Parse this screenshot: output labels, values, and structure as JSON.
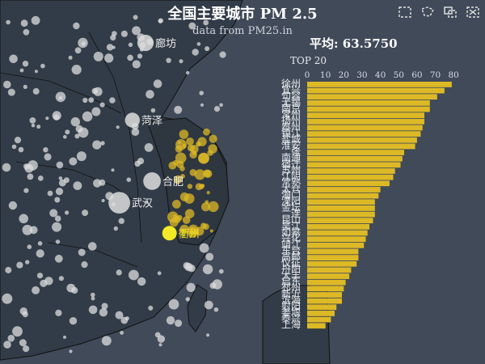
{
  "title": "全国主要城市 PM 2.5",
  "subtitle": "data from PM25.in",
  "average_label": "平均: 63.5750",
  "top_label": "TOP 20",
  "toolbar": {
    "icons": [
      "zoom-select-icon",
      "lasso-select-icon",
      "rect-select-icon",
      "clear-select-icon"
    ]
  },
  "colors": {
    "background": "#404a59",
    "land": "#323c48",
    "border": "#111111",
    "scatter": "#dddddd",
    "highlight": "#ddb926",
    "bar": "#ddb926",
    "focus": "#f4e925"
  },
  "map": {
    "city_labels": [
      {
        "name": "廊坊",
        "lon": 116.7,
        "lat": 39.5,
        "value": 24
      },
      {
        "name": "菏泽",
        "lon": 115.5,
        "lat": 35.2,
        "value": 22
      },
      {
        "name": "合肥",
        "lon": 117.3,
        "lat": 31.8,
        "value": 26
      },
      {
        "name": "武汉",
        "lon": 114.3,
        "lat": 30.6,
        "value": 32
      },
      {
        "name": "衢州",
        "lon": 118.9,
        "lat": 28.9,
        "value": 18
      }
    ],
    "focus_city": "衢州"
  },
  "chart_data": {
    "type": "bar",
    "title": "TOP 20",
    "xlim": [
      0,
      80
    ],
    "xticks": [
      0,
      10,
      20,
      30,
      40,
      50,
      60,
      70,
      80
    ],
    "categories": [
      "徐州",
      "宜兴",
      "句容",
      "无锡",
      "南京",
      "常州",
      "扬州",
      "泰州",
      "镇江",
      "盐城",
      "淮安",
      "连云港",
      "张家港",
      "南通",
      "宿迁",
      "苏州",
      "江阴",
      "常熟",
      "太仓",
      "海门",
      "溧阳",
      "金坛",
      "昆山",
      "吴江",
      "如皋",
      "兴化",
      "靖江",
      "东台",
      "高邮",
      "仪征",
      "丹阳",
      "大丰",
      "启东",
      "邳州",
      "新沂",
      "滨海",
      "射阳",
      "姜堰",
      "泰兴",
      "上海"
    ],
    "labels": [
      "徐州",
      "宜兴",
      "句容",
      "无锡",
      "南京",
      "常州",
      "扬州",
      "泰州",
      "镇江",
      "盐城",
      "淮安",
      "张",
      "南通",
      "宿迁",
      "苏州",
      "江阴",
      "常熟",
      "太仓",
      "海门",
      "溧阳",
      "金坛",
      "连",
      "昆山",
      "吴江",
      "如皋",
      "兴化",
      "靖江",
      "东台",
      "高邮",
      "仪征",
      "丹阳",
      "大丰",
      "启东",
      "邳州",
      "新沂",
      "滨海",
      "射阳",
      "姜堰",
      "泰兴",
      "上海"
    ],
    "values": [
      79,
      75,
      71,
      67,
      67,
      64,
      64,
      63,
      62,
      60,
      59,
      53,
      52,
      51,
      48,
      47,
      45,
      40,
      39,
      37,
      37,
      37,
      36,
      34,
      33,
      32,
      31,
      28,
      28,
      27,
      24,
      23,
      21,
      20,
      19,
      19,
      16,
      15,
      13,
      10
    ]
  }
}
